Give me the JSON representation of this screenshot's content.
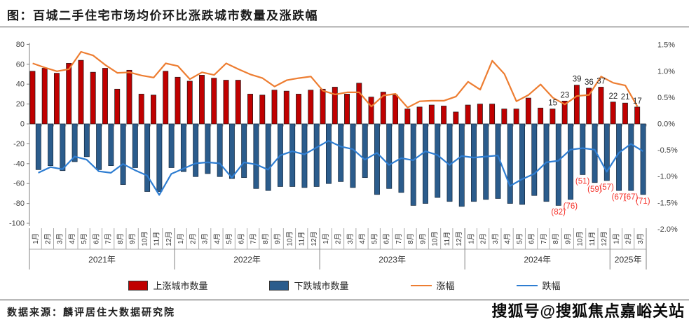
{
  "header": {
    "title": "图：百城二手住宅市场均价环比涨跌城市数量及涨跌幅"
  },
  "footer": {
    "source": "数据来源：麟评居住大数据研究院"
  },
  "watermark": {
    "text": "搜狐号@搜狐焦点嘉峪关站"
  },
  "colors": {
    "rising_bar": "#C00000",
    "falling_bar": "#2B5C8C",
    "gain_line": "#ED7D31",
    "drop_line": "#2E7DD1",
    "falling_label": "#F5332B",
    "rising_label": "#262626",
    "axis_text": "#404040"
  },
  "legend": {
    "items": [
      {
        "label": "上涨城市数量",
        "type": "swatch",
        "colorKey": "rising_bar"
      },
      {
        "label": "下跌城市数量",
        "type": "swatch",
        "colorKey": "falling_bar"
      },
      {
        "label": "涨幅",
        "type": "line",
        "colorKey": "gain_line"
      },
      {
        "label": "跌幅",
        "type": "line",
        "colorKey": "drop_line"
      }
    ]
  },
  "chart_data": {
    "type": "bar",
    "subtype": "clustered-columns-with-two-pct-lines",
    "title": "图：百城二手住宅市场均价环比涨跌城市数量及涨跌幅",
    "left_axis": {
      "ticks": [
        80,
        60,
        40,
        20,
        0,
        -20,
        -40,
        -60,
        -80,
        -100
      ],
      "ylim": [
        -100,
        80
      ]
    },
    "right_axis": {
      "ticks": [
        {
          "v": 1.5,
          "label": "1.5%"
        },
        {
          "v": 1.0,
          "label": "1.0%"
        },
        {
          "v": 0.5,
          "label": "0.5%"
        },
        {
          "v": 0.0,
          "label": "0.0%"
        },
        {
          "v": -0.5,
          "label": "-0.5%"
        },
        {
          "v": -1.0,
          "label": "-1.0%"
        },
        {
          "v": -1.5,
          "label": "-1.5%"
        },
        {
          "v": -2.0,
          "label": "-2.0%"
        }
      ],
      "ylim_pct": [
        -2.0,
        1.5
      ]
    },
    "years": [
      {
        "label": "2021年",
        "months": 12
      },
      {
        "label": "2022年",
        "months": 12
      },
      {
        "label": "2023年",
        "months": 12
      },
      {
        "label": "2024年",
        "months": 12
      },
      {
        "label": "2025年",
        "months": 3
      }
    ],
    "month_labels": [
      "1月",
      "2月",
      "3月",
      "4月",
      "5月",
      "6月",
      "7月",
      "8月",
      "9月",
      "10月",
      "11月",
      "12月",
      "1月",
      "2月",
      "3月",
      "4月",
      "5月",
      "6月",
      "7月",
      "8月",
      "9月",
      "10月",
      "11月",
      "12月",
      "1月",
      "2月",
      "3月",
      "4月",
      "5月",
      "6月",
      "7月",
      "8月",
      "9月",
      "10月",
      "11月",
      "12月",
      "1月",
      "2月",
      "3月",
      "4月",
      "5月",
      "6月",
      "7月",
      "8月",
      "9月",
      "10月",
      "11月",
      "12月",
      "1月",
      "2月",
      "3月"
    ],
    "labeled_from_index": 43,
    "series": [
      {
        "name": "上涨城市数量",
        "kind": "column",
        "colorKey": "rising_bar",
        "values": [
          53,
          56,
          51,
          61,
          64,
          52,
          56,
          35,
          54,
          30,
          29,
          53,
          47,
          43,
          49,
          46,
          44,
          44,
          30,
          29,
          34,
          33,
          30,
          34,
          35,
          37,
          30,
          41,
          27,
          32,
          29,
          15,
          17,
          19,
          18,
          12,
          19,
          20,
          20,
          15,
          15,
          26,
          16,
          15,
          23,
          39,
          36,
          37,
          22,
          21,
          17
        ]
      },
      {
        "name": "下跌城市数量",
        "kind": "column-negative",
        "colorKey": "falling_bar",
        "values": [
          46,
          42,
          47,
          38,
          33,
          46,
          42,
          61,
          44,
          68,
          68,
          44,
          48,
          53,
          50,
          53,
          55,
          54,
          65,
          67,
          63,
          63,
          64,
          63,
          60,
          58,
          64,
          54,
          71,
          65,
          69,
          82,
          80,
          74,
          78,
          83,
          78,
          76,
          75,
          80,
          81,
          72,
          78,
          82,
          76,
          51,
          59,
          57,
          67,
          67,
          71
        ]
      },
      {
        "name": "涨幅",
        "kind": "line-pct",
        "colorKey": "gain_line",
        "values": [
          1.15,
          1.07,
          1.0,
          1.04,
          1.37,
          1.3,
          1.12,
          0.97,
          0.98,
          0.92,
          0.88,
          1.15,
          1.1,
          0.85,
          0.98,
          0.93,
          1.15,
          1.04,
          0.94,
          0.87,
          0.71,
          0.83,
          0.87,
          0.9,
          0.63,
          0.56,
          0.6,
          0.6,
          0.33,
          0.54,
          0.57,
          0.31,
          0.43,
          0.44,
          0.44,
          0.52,
          0.8,
          0.65,
          1.2,
          0.95,
          0.43,
          0.55,
          0.75,
          0.5,
          0.37,
          0.53,
          0.55,
          0.9,
          0.78,
          0.73,
          0.33
        ]
      },
      {
        "name": "跌幅",
        "kind": "line-pct",
        "colorKey": "drop_line",
        "values": [
          -0.93,
          -0.82,
          -0.86,
          -0.62,
          -0.68,
          -0.9,
          -0.93,
          -0.76,
          -0.88,
          -0.98,
          -1.35,
          -0.95,
          -0.85,
          -0.75,
          -0.73,
          -0.75,
          -1.02,
          -0.73,
          -0.77,
          -0.87,
          -0.6,
          -0.52,
          -0.58,
          -0.45,
          -0.32,
          -0.43,
          -0.48,
          -0.68,
          -0.55,
          -0.78,
          -0.65,
          -0.69,
          -0.52,
          -0.59,
          -0.78,
          -0.61,
          -0.64,
          -0.62,
          -0.6,
          -1.18,
          -1.05,
          -0.95,
          -0.73,
          -0.7,
          -0.49,
          -0.46,
          -0.49,
          -0.91,
          -0.55,
          -0.38,
          -0.52
        ]
      }
    ]
  }
}
